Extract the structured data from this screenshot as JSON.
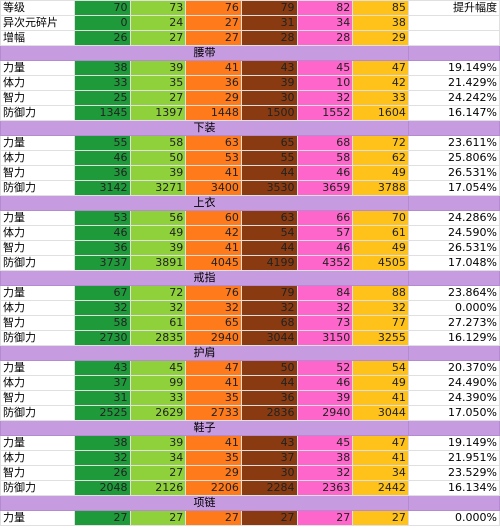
{
  "header": [
    {
      "label": "等级",
      "values": [
        "70",
        "73",
        "76",
        "79",
        "82",
        "85"
      ],
      "extra": "提升幅度"
    },
    {
      "label": "异次元碎片",
      "values": [
        "0",
        "24",
        "27",
        "31",
        "34",
        "38"
      ],
      "extra": ""
    },
    {
      "label": "增幅",
      "values": [
        "26",
        "27",
        "27",
        "28",
        "28",
        "29"
      ],
      "extra": ""
    }
  ],
  "sections": [
    {
      "title": "腰带",
      "rows": [
        {
          "label": "力量",
          "values": [
            "38",
            "39",
            "41",
            "43",
            "45",
            "47"
          ],
          "pct": "19.149%"
        },
        {
          "label": "体力",
          "values": [
            "33",
            "35",
            "36",
            "39",
            "10",
            "42"
          ],
          "pct": "21.429%"
        },
        {
          "label": "智力",
          "values": [
            "25",
            "27",
            "29",
            "30",
            "32",
            "33"
          ],
          "pct": "24.242%"
        },
        {
          "label": "防御力",
          "values": [
            "1345",
            "1397",
            "1448",
            "1500",
            "1552",
            "1604"
          ],
          "pct": "16.147%"
        }
      ]
    },
    {
      "title": "下装",
      "rows": [
        {
          "label": "力量",
          "values": [
            "55",
            "58",
            "63",
            "65",
            "68",
            "72"
          ],
          "pct": "23.611%"
        },
        {
          "label": "体力",
          "values": [
            "46",
            "50",
            "53",
            "55",
            "58",
            "62"
          ],
          "pct": "25.806%"
        },
        {
          "label": "智力",
          "values": [
            "36",
            "39",
            "41",
            "44",
            "46",
            "49"
          ],
          "pct": "26.531%"
        },
        {
          "label": "防御力",
          "values": [
            "3142",
            "3271",
            "3400",
            "3530",
            "3659",
            "3788"
          ],
          "pct": "17.054%"
        }
      ]
    },
    {
      "title": "上衣",
      "rows": [
        {
          "label": "力量",
          "values": [
            "53",
            "56",
            "60",
            "63",
            "66",
            "70"
          ],
          "pct": "24.286%"
        },
        {
          "label": "体力",
          "values": [
            "46",
            "49",
            "42",
            "54",
            "57",
            "61"
          ],
          "pct": "24.590%"
        },
        {
          "label": "智力",
          "values": [
            "36",
            "39",
            "41",
            "44",
            "46",
            "49"
          ],
          "pct": "26.531%"
        },
        {
          "label": "防御力",
          "values": [
            "3737",
            "3891",
            "4045",
            "4199",
            "4352",
            "4505"
          ],
          "pct": "17.048%"
        }
      ]
    },
    {
      "title": "戒指",
      "rows": [
        {
          "label": "力量",
          "values": [
            "67",
            "72",
            "76",
            "79",
            "84",
            "88"
          ],
          "pct": "23.864%"
        },
        {
          "label": "体力",
          "values": [
            "32",
            "32",
            "32",
            "32",
            "32",
            "32"
          ],
          "pct": "0.000%"
        },
        {
          "label": "智力",
          "values": [
            "58",
            "61",
            "65",
            "68",
            "73",
            "77"
          ],
          "pct": "27.273%"
        },
        {
          "label": "防御力",
          "values": [
            "2730",
            "2835",
            "2940",
            "3044",
            "3150",
            "3255"
          ],
          "pct": "16.129%"
        }
      ]
    },
    {
      "title": "护肩",
      "rows": [
        {
          "label": "力量",
          "values": [
            "43",
            "45",
            "47",
            "50",
            "52",
            "54"
          ],
          "pct": "20.370%"
        },
        {
          "label": "体力",
          "values": [
            "37",
            "99",
            "41",
            "44",
            "46",
            "49"
          ],
          "pct": "24.490%"
        },
        {
          "label": "智力",
          "values": [
            "31",
            "33",
            "35",
            "36",
            "39",
            "41"
          ],
          "pct": "24.390%"
        },
        {
          "label": "防御力",
          "values": [
            "2525",
            "2629",
            "2733",
            "2836",
            "2940",
            "3044"
          ],
          "pct": "17.050%"
        }
      ]
    },
    {
      "title": "鞋子",
      "rows": [
        {
          "label": "力量",
          "values": [
            "38",
            "39",
            "41",
            "43",
            "45",
            "47"
          ],
          "pct": "19.149%"
        },
        {
          "label": "体力",
          "values": [
            "32",
            "34",
            "35",
            "37",
            "38",
            "41"
          ],
          "pct": "21.951%"
        },
        {
          "label": "智力",
          "values": [
            "26",
            "27",
            "29",
            "30",
            "32",
            "34"
          ],
          "pct": "23.529%"
        },
        {
          "label": "防御力",
          "values": [
            "2048",
            "2126",
            "2206",
            "2284",
            "2363",
            "2442"
          ],
          "pct": "16.134%"
        }
      ]
    },
    {
      "title": "项链",
      "rows": [
        {
          "label": "力量",
          "values": [
            "27",
            "27",
            "27",
            "27",
            "27",
            "27"
          ],
          "pct": "0.000%"
        }
      ]
    }
  ]
}
